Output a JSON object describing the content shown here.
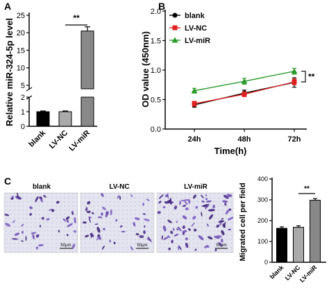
{
  "panels": {
    "a": "A",
    "b": "B",
    "c": "C"
  },
  "chart_data": [
    {
      "id": "A",
      "type": "bar",
      "ylabel": "Relative miR-324-5p level",
      "categories": [
        "blank",
        "LV-NC",
        "LV-miR"
      ],
      "values": [
        1.0,
        1.0,
        20.5
      ],
      "errors": [
        0.05,
        0.05,
        1.2
      ],
      "axis_break": true,
      "lower_range": [
        0,
        2
      ],
      "upper_range": [
        4,
        25
      ],
      "lower_ticks": [
        "0",
        "1",
        "2"
      ],
      "upper_ticks": [
        "5",
        "10",
        "15",
        "20",
        "25"
      ],
      "significance": "**",
      "colors": {
        "blank": "#000000",
        "LV-NC": "#aaaaaa",
        "LV-miR": "#888888"
      }
    },
    {
      "id": "B",
      "type": "line",
      "ylabel": "OD value (450nm)",
      "xlabel": "Time(h)",
      "x": [
        "24h",
        "48h",
        "72h"
      ],
      "ylim": [
        0,
        2.0
      ],
      "yticks": [
        "0.0",
        "0.5",
        "1.0",
        "1.5",
        "2.0"
      ],
      "series": [
        {
          "name": "blank",
          "values": [
            0.41,
            0.61,
            0.79
          ],
          "errors": [
            0.04,
            0.05,
            0.08
          ],
          "color": "#000000",
          "marker": "circle"
        },
        {
          "name": "LV-NC",
          "values": [
            0.43,
            0.59,
            0.8
          ],
          "errors": [
            0.04,
            0.04,
            0.05
          ],
          "color": "#e02020",
          "marker": "square"
        },
        {
          "name": "LV-miR",
          "values": [
            0.65,
            0.81,
            0.98
          ],
          "errors": [
            0.04,
            0.05,
            0.05
          ],
          "color": "#2a9a2a",
          "marker": "triangle"
        }
      ],
      "legend": "top-left",
      "significance": "**"
    },
    {
      "id": "C",
      "type": "bar",
      "ylabel": "Migrated cell per field",
      "categories": [
        "blank",
        "LV-NC",
        "LV-miR"
      ],
      "values": [
        163,
        168,
        298
      ],
      "errors": [
        7,
        7,
        8
      ],
      "ylim": [
        0,
        400
      ],
      "yticks": [
        "0",
        "100",
        "200",
        "300",
        "400"
      ],
      "significance": "**",
      "colors": {
        "blank": "#000000",
        "LV-NC": "#aaaaaa",
        "LV-miR": "#888888"
      }
    }
  ],
  "micrographs": {
    "labels": [
      "blank",
      "LV-NC",
      "LV-miR"
    ],
    "scale_bar": "50μm"
  }
}
